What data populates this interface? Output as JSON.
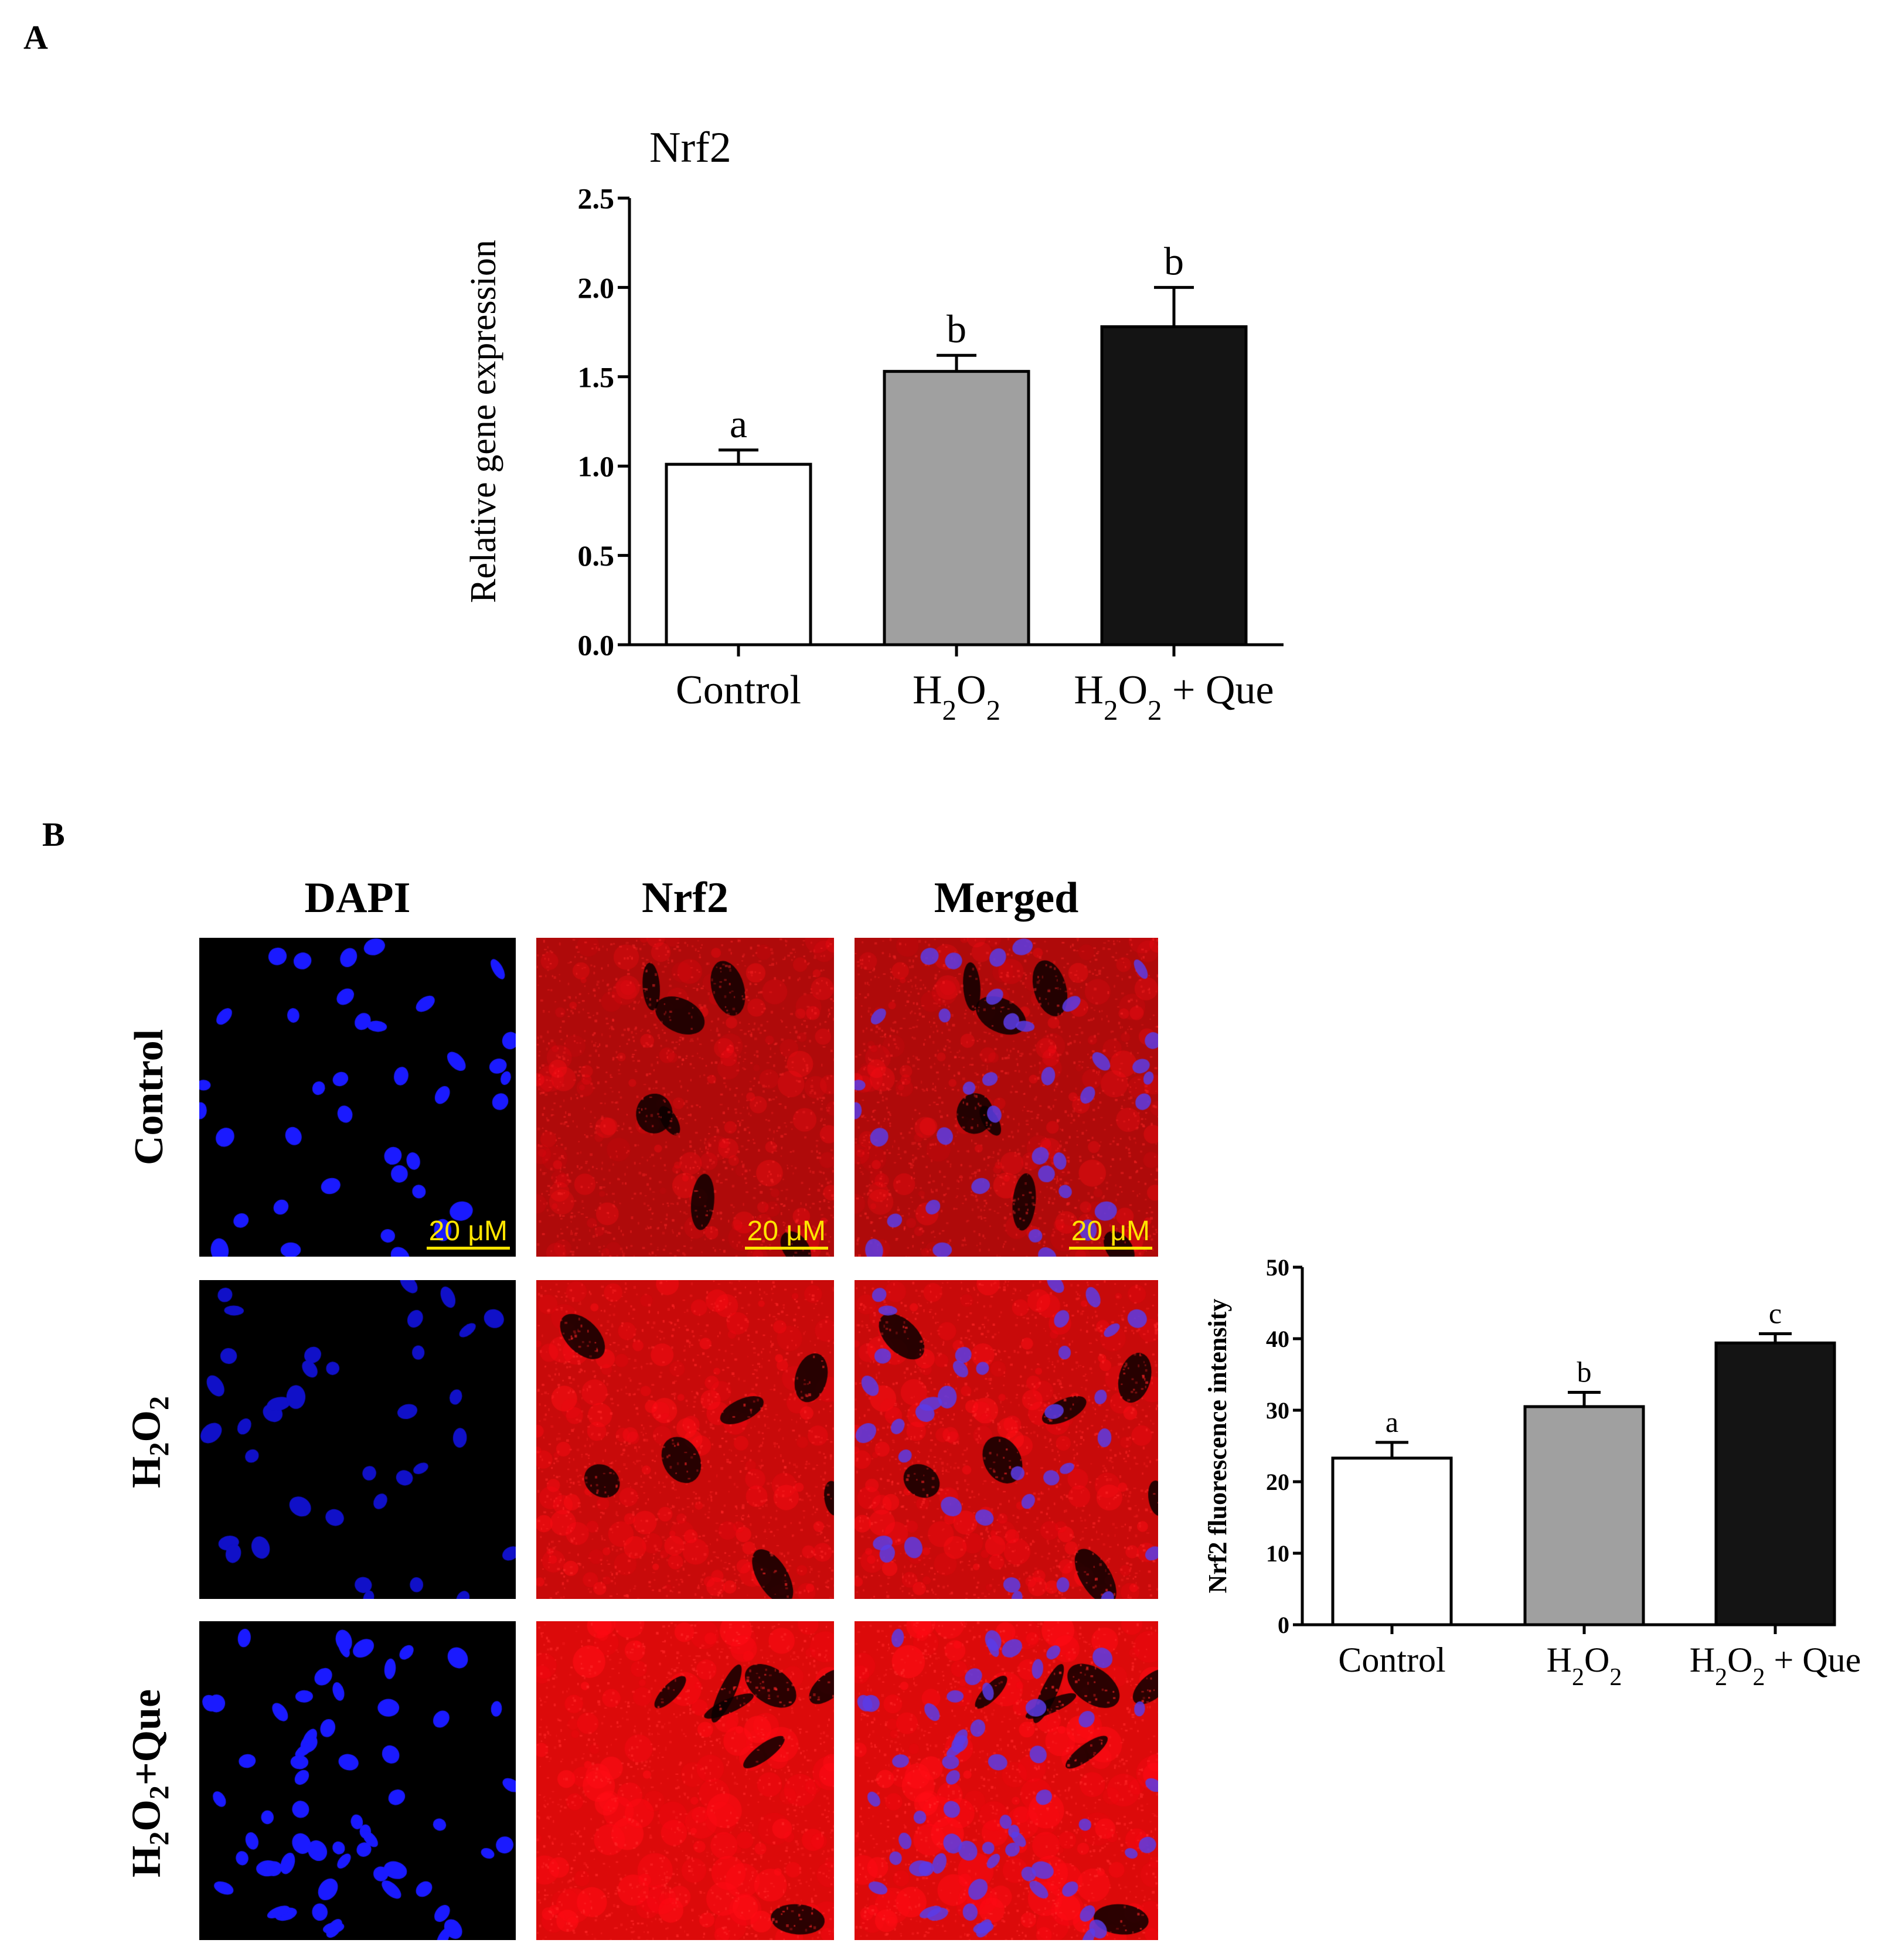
{
  "panels": {
    "a_label": "A",
    "b_label": "B"
  },
  "chart_data": [
    {
      "type": "bar",
      "title": "Nrf2",
      "ylabel": "Relative gene expression",
      "xlabel": "",
      "ylim": [
        0,
        2.5
      ],
      "yticks": [
        "0.0",
        "0.5",
        "1.0",
        "1.5",
        "2.0",
        "2.5"
      ],
      "categories": [
        "Control",
        "H2O2",
        "H2O2 + Que"
      ],
      "values": [
        1.01,
        1.53,
        1.78
      ],
      "errors": [
        0.08,
        0.09,
        0.22
      ],
      "letters": [
        "a",
        "b",
        "b"
      ],
      "colors": [
        "#ffffff",
        "#a0a0a0",
        "#141414"
      ]
    },
    {
      "type": "bar",
      "title": "",
      "ylabel": "Nrf2 fluorescence intensity",
      "xlabel": "",
      "ylim": [
        0,
        50
      ],
      "yticks": [
        "0",
        "10",
        "20",
        "30",
        "40",
        "50"
      ],
      "categories": [
        "Control",
        "H2O2",
        "H2O2 + Que"
      ],
      "values": [
        23.3,
        30.5,
        39.4
      ],
      "errors": [
        2.2,
        2.0,
        1.3
      ],
      "letters": [
        "a",
        "b",
        "c"
      ],
      "colors": [
        "#ffffff",
        "#a0a0a0",
        "#141414"
      ]
    }
  ],
  "microscopy": {
    "columns": [
      "DAPI",
      "Nrf2",
      "Merged"
    ],
    "rows": [
      "Control",
      "H2O2",
      "H2O2+Que"
    ],
    "scale_bar": "20 μM",
    "channel_colors": {
      "dapi": "#1a1aff",
      "nrf2": "#ff1a1a"
    }
  }
}
